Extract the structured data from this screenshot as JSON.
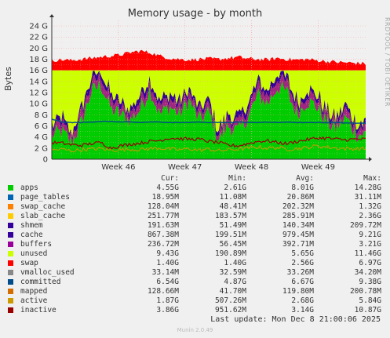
{
  "chart_data": {
    "type": "area",
    "title": "Memory usage - by month",
    "ylabel": "Bytes",
    "side_credit": "RRDTOOL / TOBI OETIKER",
    "y_ticks": [
      "0",
      "2 G",
      "4 G",
      "6 G",
      "8 G",
      "10 G",
      "12 G",
      "14 G",
      "16 G",
      "18 G",
      "20 G",
      "22 G",
      "24 G"
    ],
    "ylim_gib": [
      0,
      25
    ],
    "x_ticks": [
      "Week 46",
      "Week 47",
      "Week 48",
      "Week 49"
    ],
    "x_tick_day_offsets": [
      7,
      14,
      21,
      28
    ],
    "x_span_days": 33,
    "grid": true,
    "legend_placement": "below",
    "stacked_gib_sample": {
      "apps": [
        4.2,
        5.0,
        3.0,
        6.5,
        12.0,
        13.5,
        9.0,
        8.0,
        7.0,
        9.0,
        12.5,
        8.0,
        9.5,
        8.0,
        10.5,
        7.0,
        8.5,
        3.5,
        6.0,
        5.0,
        7.5,
        11.5,
        10.0,
        13.0,
        12.0,
        8.0,
        10.5,
        9.5,
        6.5,
        5.5,
        7.5,
        4.5,
        4.5
      ],
      "cache": [
        0.8,
        1.0,
        0.6,
        1.0,
        0.9,
        0.9,
        1.0,
        0.8,
        0.9,
        1.0,
        1.0,
        0.9,
        1.0,
        0.9,
        0.9,
        0.8,
        0.9,
        0.7,
        1.0,
        0.9,
        1.0,
        1.0,
        1.0,
        1.0,
        1.0,
        0.9,
        1.0,
        1.0,
        0.9,
        0.8,
        1.0,
        0.9,
        0.9
      ],
      "others": [
        1.2,
        1.4,
        1.0,
        1.5,
        1.4,
        1.5,
        1.5,
        1.2,
        1.3,
        1.4,
        1.5,
        1.3,
        1.5,
        1.3,
        1.4,
        1.2,
        1.3,
        1.0,
        1.3,
        1.2,
        1.5,
        1.5,
        1.4,
        1.6,
        1.5,
        1.3,
        1.4,
        1.4,
        1.3,
        1.2,
        1.3,
        1.2,
        1.2
      ],
      "unused_top": [
        16.0,
        16.0,
        16.0,
        16.0,
        16.0,
        16.0,
        16.0,
        16.0,
        16.0,
        16.0,
        16.0,
        16.0,
        16.0,
        16.0,
        16.0,
        16.0,
        16.0,
        16.0,
        16.0,
        16.0,
        16.0,
        16.0,
        16.0,
        16.0,
        16.0,
        16.0,
        16.0,
        16.0,
        16.0,
        16.0,
        16.0,
        16.0,
        16.0
      ],
      "swap_top": [
        17.8,
        17.9,
        17.8,
        18.0,
        18.2,
        18.4,
        18.6,
        18.8,
        19.2,
        19.5,
        19.2,
        18.6,
        18.2,
        18.0,
        17.9,
        18.0,
        18.1,
        18.0,
        18.2,
        18.4,
        18.1,
        18.0,
        17.9,
        18.2,
        18.0,
        17.9,
        18.0,
        17.8,
        17.6,
        17.5,
        17.4,
        17.3,
        17.2
      ]
    },
    "lines_gib_sample": {
      "committed": [
        7.2,
        6.7,
        6.6,
        6.6,
        6.7,
        6.8,
        6.8,
        6.7,
        6.7,
        6.6,
        6.7,
        6.7,
        6.6,
        6.6,
        6.6,
        6.7,
        6.6,
        6.6,
        6.6,
        6.7,
        6.6,
        6.6,
        6.7,
        6.6,
        6.7,
        6.6,
        6.6,
        6.6,
        6.6,
        6.6,
        6.5,
        6.5,
        6.5
      ],
      "inactive": [
        3.0,
        2.9,
        2.6,
        2.5,
        2.8,
        3.0,
        2.0,
        2.4,
        2.7,
        2.9,
        3.2,
        3.4,
        3.8,
        3.7,
        3.6,
        3.6,
        3.2,
        3.0,
        2.5,
        2.4,
        2.8,
        3.2,
        3.3,
        3.0,
        2.8,
        3.2,
        3.5,
        3.8,
        3.8,
        3.6,
        3.5,
        3.6,
        3.6
      ],
      "active": [
        1.6,
        1.8,
        1.5,
        1.7,
        1.8,
        1.9,
        1.6,
        1.7,
        1.8,
        1.7,
        1.9,
        2.0,
        1.8,
        1.7,
        1.9,
        1.6,
        1.8,
        1.5,
        1.7,
        1.8,
        2.0,
        2.2,
        2.0,
        2.1,
        1.8,
        1.9,
        2.1,
        2.4,
        2.2,
        2.0,
        1.9,
        1.9,
        1.9
      ]
    },
    "colors": {
      "apps": "#00cc00",
      "page_tables": "#0066b3",
      "swap_cache": "#ff8000",
      "slab_cache": "#ffcc00",
      "shmem": "#330099",
      "cache": "#330099",
      "buffers": "#990099",
      "unused": "#ccff00",
      "swap": "#ff0000",
      "vmalloc_used": "#888888",
      "committed": "#004b8a",
      "mapped": "#d36d00",
      "active": "#cc9900",
      "inactive": "#990000"
    },
    "legend": {
      "headers": [
        "Cur:",
        "Min:",
        "Avg:",
        "Max:"
      ],
      "rows": [
        {
          "name": "apps",
          "color": "#00cc00",
          "cur": "4.55G",
          "min": "2.61G",
          "avg": "8.01G",
          "max": "14.28G"
        },
        {
          "name": "page_tables",
          "color": "#0066b3",
          "cur": "18.95M",
          "min": "11.08M",
          "avg": "20.86M",
          "max": "31.11M"
        },
        {
          "name": "swap_cache",
          "color": "#ff8000",
          "cur": "128.04M",
          "min": "48.41M",
          "avg": "202.32M",
          "max": "1.32G"
        },
        {
          "name": "slab_cache",
          "color": "#ffcc00",
          "cur": "251.77M",
          "min": "183.57M",
          "avg": "285.91M",
          "max": "2.36G"
        },
        {
          "name": "shmem",
          "color": "#330099",
          "cur": "191.63M",
          "min": "51.49M",
          "avg": "140.34M",
          "max": "209.72M"
        },
        {
          "name": "cache",
          "color": "#330099",
          "cur": "867.38M",
          "min": "199.51M",
          "avg": "979.45M",
          "max": "9.21G"
        },
        {
          "name": "buffers",
          "color": "#990099",
          "cur": "236.72M",
          "min": "56.45M",
          "avg": "392.71M",
          "max": "3.21G"
        },
        {
          "name": "unused",
          "color": "#ccff00",
          "cur": "9.43G",
          "min": "190.89M",
          "avg": "5.65G",
          "max": "11.46G"
        },
        {
          "name": "swap",
          "color": "#ff0000",
          "cur": "1.40G",
          "min": "1.40G",
          "avg": "2.56G",
          "max": "6.97G"
        },
        {
          "name": "vmalloc_used",
          "color": "#888888",
          "cur": "33.14M",
          "min": "32.59M",
          "avg": "33.26M",
          "max": "34.20M"
        },
        {
          "name": "committed",
          "color": "#004b8a",
          "cur": "6.54G",
          "min": "4.87G",
          "avg": "6.67G",
          "max": "9.38G"
        },
        {
          "name": "mapped",
          "color": "#d36d00",
          "cur": "128.66M",
          "min": "41.70M",
          "avg": "119.80M",
          "max": "200.78M"
        },
        {
          "name": "active",
          "color": "#cc9900",
          "cur": "1.87G",
          "min": "507.26M",
          "avg": "2.68G",
          "max": "5.84G"
        },
        {
          "name": "inactive",
          "color": "#990000",
          "cur": "3.86G",
          "min": "951.62M",
          "avg": "3.14G",
          "max": "10.87G"
        }
      ]
    }
  },
  "footer": {
    "last_update": "Last update: Mon Dec  8 21:00:06 2025",
    "version": "Munin 2.0.49"
  }
}
